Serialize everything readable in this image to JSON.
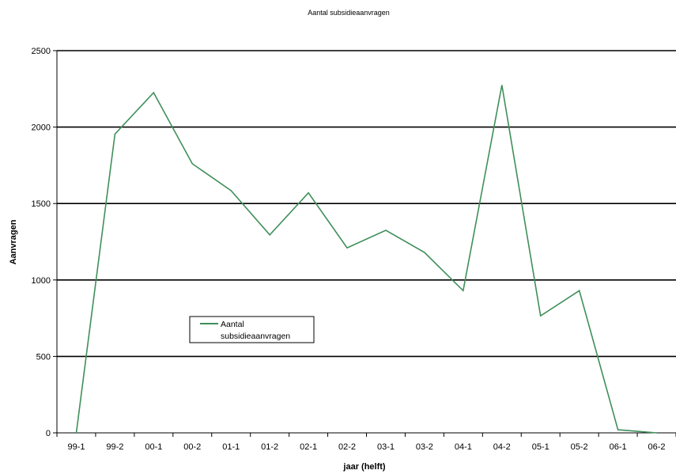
{
  "chart_data": {
    "type": "line",
    "title": "Aantal subsidieaanvragen",
    "xlabel": "jaar (helft)",
    "ylabel": "Aanvragen",
    "ylim": [
      0,
      2500
    ],
    "yticks": [
      0,
      500,
      1000,
      1500,
      2000,
      2500
    ],
    "grid": true,
    "legend_position": "center-left",
    "categories": [
      "99-1",
      "99-2",
      "00-1",
      "00-2",
      "01-1",
      "01-2",
      "02-1",
      "02-2",
      "03-1",
      "03-2",
      "04-1",
      "04-2",
      "05-1",
      "05-2",
      "06-1",
      "06-2"
    ],
    "series": [
      {
        "name": "Aantal subsidieaanvragen",
        "legend_lines": [
          "Aantal",
          "subsidieaanvragen"
        ],
        "color": "#3f8f5a",
        "values": [
          0,
          1955,
          2225,
          1760,
          1585,
          1295,
          1570,
          1210,
          1325,
          1180,
          930,
          2275,
          765,
          930,
          20,
          0
        ]
      }
    ]
  }
}
